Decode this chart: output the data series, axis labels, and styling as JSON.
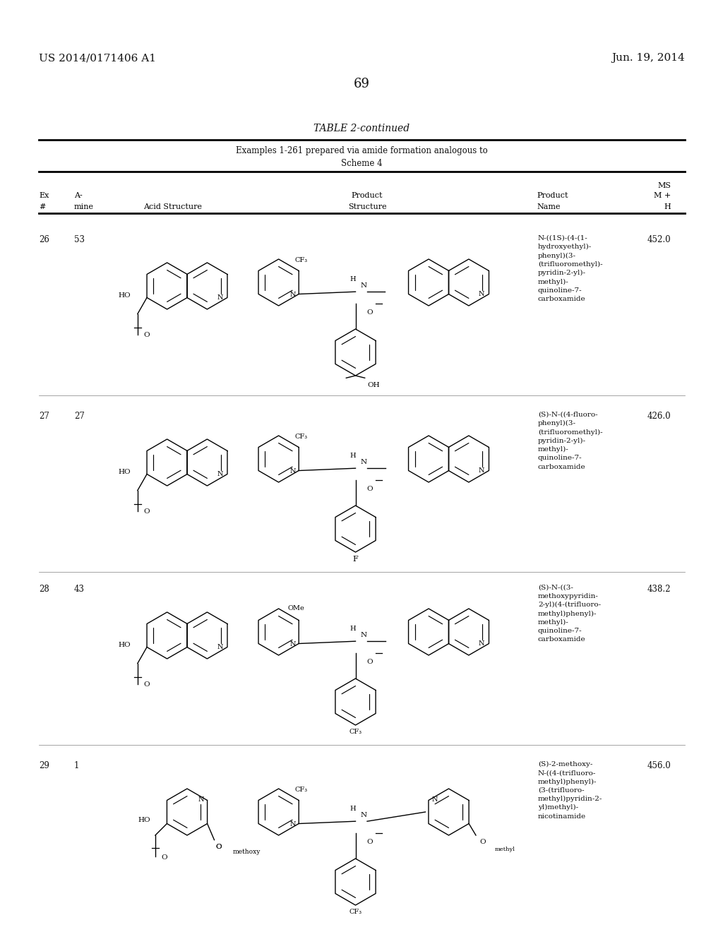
{
  "background_color": "#ffffff",
  "page_number": "69",
  "header_left": "US 2014/0171406 A1",
  "header_right": "Jun. 19, 2014",
  "table_title": "TABLE 2-continued",
  "table_subtitle_line1": "Examples 1-261 prepared via amide formation analogous to",
  "table_subtitle_line2": "Scheme 4",
  "rows": [
    {
      "ex": "26",
      "amine": "53",
      "product_name": "N-((1S)-(4-(1-\nhydroxyethyl)-\nphenyl)(3-\n(trifluoromethyl)-\npyridin-2-yl)-\nmethyl)-\nquinoline-7-\ncarboxamide",
      "ms": "452.0"
    },
    {
      "ex": "27",
      "amine": "27",
      "product_name": "(S)-N-((4-fluoro-\nphenyl)(3-\n(trifluoromethyl)-\npyridin-2-yl)-\nmethyl)-\nquinoline-7-\ncarboxamide",
      "ms": "426.0"
    },
    {
      "ex": "28",
      "amine": "43",
      "product_name": "(S)-N-((3-\nmethoxypyridin-\n2-yl)(4-(trifluoro-\nmethyl)phenyl)-\nmethyl)-\nquinoline-7-\ncarboxamide",
      "ms": "438.2"
    },
    {
      "ex": "29",
      "amine": "1",
      "product_name": "(S)-2-methoxy-\nN-((4-(trifluoro-\nmethyl)phenyl)-\n(3-(trifluoro-\nmethyl)pyridin-2-\nyl)methyl)-\nnicotinamide",
      "ms": "456.0"
    }
  ]
}
